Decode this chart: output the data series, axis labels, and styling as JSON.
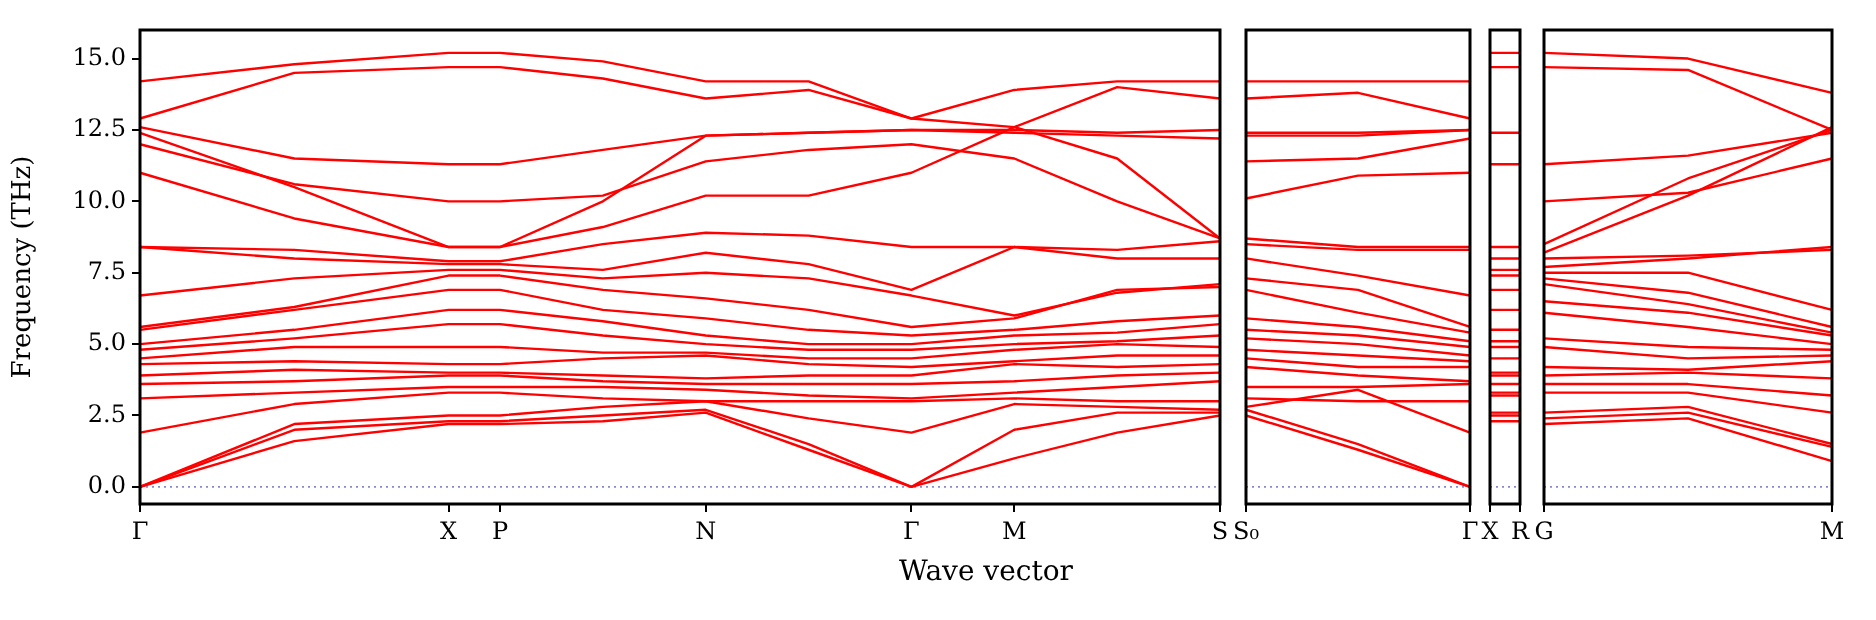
{
  "chart_data": [
    {
      "type": "line",
      "ylabel": "Frequency (THz)",
      "xlabel": "Wave vector",
      "ylim": [
        -0.6,
        16
      ],
      "yticks": [
        {
          "value": 0,
          "label": "0.0"
        },
        {
          "value": 2.5,
          "label": "2.5"
        },
        {
          "value": 5,
          "label": "5.0"
        },
        {
          "value": 7.5,
          "label": "7.5"
        },
        {
          "value": 10,
          "label": "10.0"
        },
        {
          "value": 12.5,
          "label": "12.5"
        },
        {
          "value": 15,
          "label": "15.0"
        }
      ],
      "categories": [
        "Γ",
        null,
        null,
        null,
        null,
        null,
        "X",
        "P",
        null,
        null,
        null,
        "N",
        null,
        null,
        null,
        "Γ",
        null,
        "M",
        null,
        null,
        null,
        "S"
      ],
      "grid": false,
      "legend": false,
      "ref_lines": [
        {
          "axis": "y",
          "value": 0,
          "color": "#8888cc",
          "line_style": "dotted"
        }
      ],
      "series": [
        {
          "color": "#ff0000",
          "values": [
            14.2,
            null,
            null,
            14.8,
            null,
            null,
            15.2,
            15.2,
            null,
            14.9,
            null,
            14.2,
            null,
            14.2,
            null,
            12.9,
            null,
            13.9,
            null,
            14.2,
            null,
            14.2
          ]
        },
        {
          "color": "#ff0000",
          "values": [
            12.9,
            null,
            null,
            14.5,
            null,
            null,
            14.7,
            14.7,
            null,
            14.3,
            null,
            13.6,
            null,
            13.9,
            null,
            12.9,
            null,
            12.6,
            null,
            14.0,
            null,
            13.6
          ]
        },
        {
          "color": "#ff0000",
          "values": [
            12.6,
            null,
            null,
            11.5,
            null,
            null,
            11.3,
            11.3,
            null,
            11.8,
            null,
            12.3,
            null,
            12.4,
            null,
            12.5,
            null,
            12.5,
            null,
            12.4,
            null,
            12.5
          ]
        },
        {
          "color": "#ff0000",
          "values": [
            12.4,
            null,
            null,
            10.5,
            null,
            null,
            8.4,
            8.4,
            null,
            10.0,
            null,
            12.3,
            null,
            12.4,
            null,
            12.5,
            null,
            12.4,
            null,
            12.3,
            null,
            12.2
          ]
        },
        {
          "color": "#ff0000",
          "values": [
            12.0,
            null,
            null,
            10.6,
            null,
            null,
            10.0,
            10.0,
            null,
            10.2,
            null,
            11.4,
            null,
            11.8,
            null,
            12.0,
            null,
            11.5,
            null,
            10.0,
            null,
            8.7
          ]
        },
        {
          "color": "#ff0000",
          "values": [
            11.0,
            null,
            null,
            9.4,
            null,
            null,
            8.4,
            8.4,
            null,
            9.1,
            null,
            10.2,
            null,
            10.2,
            null,
            11.0,
            null,
            12.6,
            null,
            11.5,
            null,
            8.7
          ]
        },
        {
          "color": "#ff0000",
          "values": [
            8.4,
            null,
            null,
            8.3,
            null,
            null,
            7.9,
            7.9,
            null,
            8.5,
            null,
            8.9,
            null,
            8.8,
            null,
            8.4,
            null,
            8.4,
            null,
            8.3,
            null,
            8.6
          ]
        },
        {
          "color": "#ff0000",
          "values": [
            8.4,
            null,
            null,
            8.0,
            null,
            null,
            7.8,
            7.8,
            null,
            7.6,
            null,
            8.2,
            null,
            7.8,
            null,
            6.9,
            null,
            8.4,
            null,
            8.0,
            null,
            8.0
          ]
        },
        {
          "color": "#ff0000",
          "values": [
            6.7,
            null,
            null,
            7.3,
            null,
            null,
            7.6,
            7.6,
            null,
            7.3,
            null,
            7.5,
            null,
            7.3,
            null,
            6.7,
            null,
            6.0,
            null,
            6.8,
            null,
            7.1
          ]
        },
        {
          "color": "#ff0000",
          "values": [
            5.6,
            null,
            null,
            6.3,
            null,
            null,
            7.4,
            7.4,
            null,
            6.9,
            null,
            6.6,
            null,
            6.2,
            null,
            5.6,
            null,
            5.9,
            null,
            6.9,
            null,
            7.0
          ]
        },
        {
          "color": "#ff0000",
          "values": [
            5.5,
            null,
            null,
            6.2,
            null,
            null,
            6.9,
            6.9,
            null,
            6.2,
            null,
            5.9,
            null,
            5.5,
            null,
            5.3,
            null,
            5.5,
            null,
            5.8,
            null,
            6.0
          ]
        },
        {
          "color": "#ff0000",
          "values": [
            5.0,
            null,
            null,
            5.5,
            null,
            null,
            6.2,
            6.2,
            null,
            5.8,
            null,
            5.3,
            null,
            5.0,
            null,
            5.0,
            null,
            5.3,
            null,
            5.4,
            null,
            5.7
          ]
        },
        {
          "color": "#ff0000",
          "values": [
            4.8,
            null,
            null,
            5.2,
            null,
            null,
            5.7,
            5.7,
            null,
            5.3,
            null,
            5.0,
            null,
            4.8,
            null,
            4.8,
            null,
            5.0,
            null,
            5.1,
            null,
            5.3
          ]
        },
        {
          "color": "#ff0000",
          "values": [
            4.5,
            null,
            null,
            4.9,
            null,
            null,
            4.9,
            4.9,
            null,
            4.7,
            null,
            4.7,
            null,
            4.5,
            null,
            4.5,
            null,
            4.8,
            null,
            5.0,
            null,
            4.9
          ]
        },
        {
          "color": "#ff0000",
          "values": [
            4.3,
            null,
            null,
            4.4,
            null,
            null,
            4.3,
            4.3,
            null,
            4.5,
            null,
            4.6,
            null,
            4.3,
            null,
            4.2,
            null,
            4.4,
            null,
            4.6,
            null,
            4.6
          ]
        },
        {
          "color": "#ff0000",
          "values": [
            3.9,
            null,
            null,
            4.1,
            null,
            null,
            4.0,
            4.0,
            null,
            3.9,
            null,
            3.8,
            null,
            3.9,
            null,
            3.9,
            null,
            4.3,
            null,
            4.2,
            null,
            4.3
          ]
        },
        {
          "color": "#ff0000",
          "values": [
            3.6,
            null,
            null,
            3.7,
            null,
            null,
            3.9,
            3.9,
            null,
            3.7,
            null,
            3.6,
            null,
            3.6,
            null,
            3.6,
            null,
            3.7,
            null,
            3.9,
            null,
            4.0
          ]
        },
        {
          "color": "#ff0000",
          "values": [
            3.1,
            null,
            null,
            3.3,
            null,
            null,
            3.5,
            3.5,
            null,
            3.5,
            null,
            3.4,
            null,
            3.2,
            null,
            3.1,
            null,
            3.3,
            null,
            3.5,
            null,
            3.7
          ]
        },
        {
          "color": "#ff0000",
          "values": [
            1.9,
            null,
            null,
            2.9,
            null,
            null,
            3.3,
            3.3,
            null,
            3.1,
            null,
            3.0,
            null,
            3.0,
            null,
            3.0,
            null,
            3.1,
            null,
            3.0,
            null,
            3.0
          ]
        },
        {
          "color": "#ff0000",
          "values": [
            0,
            null,
            null,
            2.2,
            null,
            null,
            2.5,
            2.5,
            null,
            2.8,
            null,
            3.0,
            null,
            2.4,
            null,
            1.9,
            null,
            2.9,
            null,
            2.8,
            null,
            2.7
          ]
        },
        {
          "color": "#ff0000",
          "values": [
            0,
            null,
            null,
            2.0,
            null,
            null,
            2.3,
            2.3,
            null,
            2.5,
            null,
            2.7,
            null,
            1.5,
            null,
            0,
            null,
            2.0,
            null,
            2.6,
            null,
            2.6
          ]
        },
        {
          "color": "#ff0000",
          "values": [
            0,
            null,
            null,
            1.6,
            null,
            null,
            2.2,
            2.2,
            null,
            2.3,
            null,
            2.6,
            null,
            1.3,
            null,
            0,
            null,
            1.0,
            null,
            1.9,
            null,
            2.5
          ]
        }
      ]
    },
    {
      "type": "line",
      "tick_labels": "x",
      "ylim": [
        -0.6,
        16
      ],
      "categories": [
        "S₀",
        null,
        null,
        null,
        "Γ"
      ],
      "grid": false,
      "legend": false,
      "ref_lines": [
        {
          "axis": "y",
          "value": 0,
          "color": "#8888cc",
          "line_style": "dotted"
        }
      ],
      "series": [
        {
          "color": "#ff0000",
          "values": [
            14.2,
            null,
            14.2,
            null,
            14.2
          ]
        },
        {
          "color": "#ff0000",
          "values": [
            13.6,
            null,
            13.8,
            null,
            12.9
          ]
        },
        {
          "color": "#ff0000",
          "values": [
            12.4,
            null,
            12.4,
            null,
            12.5
          ]
        },
        {
          "color": "#ff0000",
          "values": [
            12.3,
            null,
            12.3,
            null,
            12.5
          ]
        },
        {
          "color": "#ff0000",
          "values": [
            11.4,
            null,
            11.5,
            null,
            12.2
          ]
        },
        {
          "color": "#ff0000",
          "values": [
            10.1,
            null,
            10.9,
            null,
            11.0
          ]
        },
        {
          "color": "#ff0000",
          "values": [
            8.7,
            null,
            8.4,
            null,
            8.4
          ]
        },
        {
          "color": "#ff0000",
          "values": [
            8.5,
            null,
            8.3,
            null,
            8.3
          ]
        },
        {
          "color": "#ff0000",
          "values": [
            8.0,
            null,
            7.4,
            null,
            6.7
          ]
        },
        {
          "color": "#ff0000",
          "values": [
            7.3,
            null,
            6.9,
            null,
            5.6
          ]
        },
        {
          "color": "#ff0000",
          "values": [
            6.9,
            null,
            6.1,
            null,
            5.4
          ]
        },
        {
          "color": "#ff0000",
          "values": [
            5.9,
            null,
            5.6,
            null,
            5.1
          ]
        },
        {
          "color": "#ff0000",
          "values": [
            5.5,
            null,
            5.3,
            null,
            4.9
          ]
        },
        {
          "color": "#ff0000",
          "values": [
            5.2,
            null,
            5.0,
            null,
            4.6
          ]
        },
        {
          "color": "#ff0000",
          "values": [
            4.8,
            null,
            4.6,
            null,
            4.4
          ]
        },
        {
          "color": "#ff0000",
          "values": [
            4.5,
            null,
            4.2,
            null,
            4.2
          ]
        },
        {
          "color": "#ff0000",
          "values": [
            4.2,
            null,
            3.9,
            null,
            3.7
          ]
        },
        {
          "color": "#ff0000",
          "values": [
            3.5,
            null,
            3.5,
            null,
            3.6
          ]
        },
        {
          "color": "#ff0000",
          "values": [
            3.1,
            null,
            3.0,
            null,
            3.0
          ]
        },
        {
          "color": "#ff0000",
          "values": [
            2.8,
            null,
            3.4,
            null,
            1.9
          ]
        },
        {
          "color": "#ff0000",
          "values": [
            2.7,
            null,
            1.5,
            null,
            0
          ]
        },
        {
          "color": "#ff0000",
          "values": [
            2.5,
            null,
            1.3,
            null,
            0
          ]
        }
      ]
    },
    {
      "type": "line",
      "tick_labels": "x",
      "ylim": [
        -0.6,
        16
      ],
      "categories": [
        "X",
        "R"
      ],
      "grid": false,
      "legend": false,
      "ref_lines": [
        {
          "axis": "y",
          "value": 0,
          "color": "#8888cc",
          "line_style": "dotted"
        }
      ],
      "series": [
        {
          "color": "#ff0000",
          "values": [
            15.2,
            15.2
          ]
        },
        {
          "color": "#ff0000",
          "values": [
            14.7,
            14.7
          ]
        },
        {
          "color": "#ff0000",
          "values": [
            12.4,
            12.4
          ]
        },
        {
          "color": "#ff0000",
          "values": [
            11.3,
            11.3
          ]
        },
        {
          "color": "#ff0000",
          "values": [
            8.4,
            8.4
          ]
        },
        {
          "color": "#ff0000",
          "values": [
            8.0,
            8.0
          ]
        },
        {
          "color": "#ff0000",
          "values": [
            7.6,
            7.6
          ]
        },
        {
          "color": "#ff0000",
          "values": [
            7.4,
            7.4
          ]
        },
        {
          "color": "#ff0000",
          "values": [
            6.9,
            6.9
          ]
        },
        {
          "color": "#ff0000",
          "values": [
            6.2,
            6.2
          ]
        },
        {
          "color": "#ff0000",
          "values": [
            5.5,
            5.5
          ]
        },
        {
          "color": "#ff0000",
          "values": [
            5.1,
            5.1
          ]
        },
        {
          "color": "#ff0000",
          "values": [
            4.9,
            4.9
          ]
        },
        {
          "color": "#ff0000",
          "values": [
            4.5,
            4.5
          ]
        },
        {
          "color": "#ff0000",
          "values": [
            4.0,
            4.0
          ]
        },
        {
          "color": "#ff0000",
          "values": [
            3.9,
            3.9
          ]
        },
        {
          "color": "#ff0000",
          "values": [
            3.6,
            3.6
          ]
        },
        {
          "color": "#ff0000",
          "values": [
            3.3,
            3.3
          ]
        },
        {
          "color": "#ff0000",
          "values": [
            3.2,
            3.2
          ]
        },
        {
          "color": "#ff0000",
          "values": [
            2.6,
            2.6
          ]
        },
        {
          "color": "#ff0000",
          "values": [
            2.5,
            2.5
          ]
        },
        {
          "color": "#ff0000",
          "values": [
            2.3,
            2.3
          ]
        }
      ]
    },
    {
      "type": "line",
      "tick_labels": "x",
      "ylim": [
        -0.6,
        16
      ],
      "categories": [
        "G",
        null,
        null,
        null,
        null,
        null,
        "M"
      ],
      "grid": false,
      "legend": false,
      "ref_lines": [
        {
          "axis": "y",
          "value": 0,
          "color": "#8888cc",
          "line_style": "dotted"
        }
      ],
      "series": [
        {
          "color": "#ff0000",
          "values": [
            15.2,
            null,
            null,
            15.0,
            null,
            null,
            13.8
          ]
        },
        {
          "color": "#ff0000",
          "values": [
            14.7,
            null,
            null,
            14.6,
            null,
            null,
            12.5
          ]
        },
        {
          "color": "#ff0000",
          "values": [
            11.3,
            null,
            null,
            11.6,
            null,
            null,
            12.4
          ]
        },
        {
          "color": "#ff0000",
          "values": [
            10.0,
            null,
            null,
            10.3,
            null,
            null,
            11.5
          ]
        },
        {
          "color": "#ff0000",
          "values": [
            8.5,
            null,
            null,
            10.8,
            null,
            null,
            12.5
          ]
        },
        {
          "color": "#ff0000",
          "values": [
            8.2,
            null,
            null,
            10.2,
            null,
            null,
            12.6
          ]
        },
        {
          "color": "#ff0000",
          "values": [
            8.0,
            null,
            null,
            8.1,
            null,
            null,
            8.3
          ]
        },
        {
          "color": "#ff0000",
          "values": [
            7.7,
            null,
            null,
            8.0,
            null,
            null,
            8.4
          ]
        },
        {
          "color": "#ff0000",
          "values": [
            7.5,
            null,
            null,
            7.5,
            null,
            null,
            6.2
          ]
        },
        {
          "color": "#ff0000",
          "values": [
            7.3,
            null,
            null,
            6.8,
            null,
            null,
            5.6
          ]
        },
        {
          "color": "#ff0000",
          "values": [
            7.1,
            null,
            null,
            6.4,
            null,
            null,
            5.4
          ]
        },
        {
          "color": "#ff0000",
          "values": [
            6.5,
            null,
            null,
            6.1,
            null,
            null,
            5.3
          ]
        },
        {
          "color": "#ff0000",
          "values": [
            6.1,
            null,
            null,
            5.6,
            null,
            null,
            5.0
          ]
        },
        {
          "color": "#ff0000",
          "values": [
            5.2,
            null,
            null,
            4.9,
            null,
            null,
            4.8
          ]
        },
        {
          "color": "#ff0000",
          "values": [
            4.9,
            null,
            null,
            4.5,
            null,
            null,
            4.6
          ]
        },
        {
          "color": "#ff0000",
          "values": [
            4.2,
            null,
            null,
            4.1,
            null,
            null,
            4.4
          ]
        },
        {
          "color": "#ff0000",
          "values": [
            3.9,
            null,
            null,
            4.0,
            null,
            null,
            3.8
          ]
        },
        {
          "color": "#ff0000",
          "values": [
            3.6,
            null,
            null,
            3.6,
            null,
            null,
            3.2
          ]
        },
        {
          "color": "#ff0000",
          "values": [
            3.3,
            null,
            null,
            3.3,
            null,
            null,
            2.6
          ]
        },
        {
          "color": "#ff0000",
          "values": [
            2.6,
            null,
            null,
            2.8,
            null,
            null,
            1.5
          ]
        },
        {
          "color": "#ff0000",
          "values": [
            2.4,
            null,
            null,
            2.6,
            null,
            null,
            1.4
          ]
        },
        {
          "color": "#ff0000",
          "values": [
            2.2,
            null,
            null,
            2.4,
            null,
            null,
            0.9
          ]
        }
      ]
    }
  ]
}
